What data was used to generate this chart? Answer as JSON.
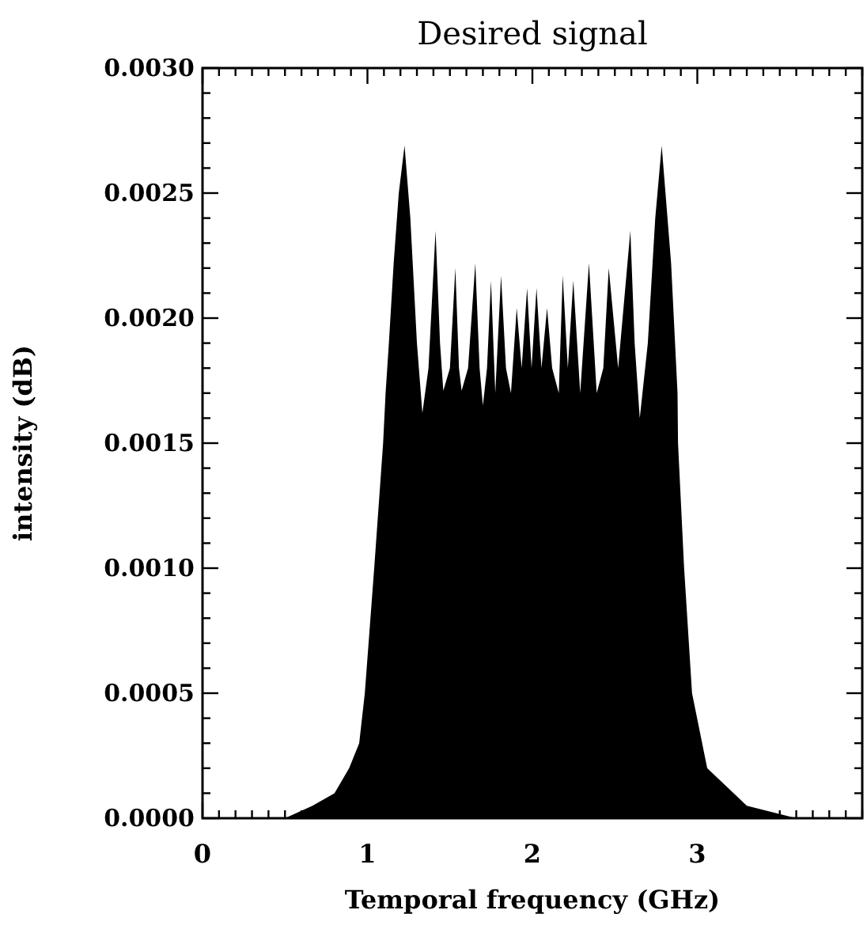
{
  "chart_data": {
    "type": "area",
    "title": "Desired signal",
    "xlabel": "Temporal frequency (GHz)",
    "ylabel": "intensity (dB)",
    "x": [
      0,
      0.3,
      0.5,
      0.667,
      0.8,
      0.889,
      0.95,
      0.984,
      1.041,
      1.095,
      1.11,
      1.13,
      1.159,
      1.19,
      1.225,
      1.26,
      1.3,
      1.333,
      1.37,
      1.413,
      1.44,
      1.46,
      1.5,
      1.533,
      1.555,
      1.571,
      1.61,
      1.654,
      1.68,
      1.7,
      1.725,
      1.749,
      1.775,
      1.81,
      1.84,
      1.87,
      1.905,
      1.935,
      1.968,
      1.995,
      2.025,
      2.055,
      2.089,
      2.12,
      2.16,
      2.184,
      2.215,
      2.248,
      2.29,
      2.343,
      2.39,
      2.43,
      2.463,
      2.52,
      2.594,
      2.62,
      2.651,
      2.7,
      2.745,
      2.784,
      2.841,
      2.88,
      2.883,
      2.92,
      2.968,
      3.06,
      3.3,
      3.6,
      4
    ],
    "values": [
      0,
      0,
      0,
      5e-05,
      0.0001,
      0.0002,
      0.0003,
      0.0005,
      0.001,
      0.0015,
      0.0017,
      0.0019,
      0.00222,
      0.0025,
      0.00269,
      0.0024,
      0.0019,
      0.00162,
      0.0018,
      0.00235,
      0.0019,
      0.00171,
      0.0018,
      0.0022,
      0.0018,
      0.00171,
      0.0018,
      0.00222,
      0.0018,
      0.00165,
      0.0018,
      0.00215,
      0.0017,
      0.00217,
      0.0018,
      0.0017,
      0.00204,
      0.0018,
      0.00212,
      0.0018,
      0.00212,
      0.0018,
      0.00204,
      0.0018,
      0.0017,
      0.00217,
      0.0018,
      0.00215,
      0.0017,
      0.00222,
      0.0017,
      0.0018,
      0.0022,
      0.0018,
      0.00235,
      0.0019,
      0.0016,
      0.0019,
      0.0024,
      0.00269,
      0.00222,
      0.0017,
      0.0015,
      0.001,
      0.0005,
      0.0002,
      5e-05,
      0,
      0
    ],
    "color": "#000000",
    "xlim": [
      0,
      4
    ],
    "ylim": [
      0,
      0.003
    ],
    "xticks": [
      0,
      1,
      2,
      3,
      {
        "value": 4,
        "label": null
      },
      {
        "value": 0.1,
        "label": null
      },
      {
        "value": 0.2,
        "label": null
      },
      {
        "value": 0.3,
        "label": null
      },
      {
        "value": 0.4,
        "label": null
      },
      {
        "value": 0.5,
        "label": null
      },
      {
        "value": 0.6,
        "label": null
      },
      {
        "value": 0.7,
        "label": null
      },
      {
        "value": 0.8,
        "label": null
      },
      {
        "value": 0.9,
        "label": null
      },
      {
        "value": 1.1,
        "label": null
      },
      {
        "value": 1.2,
        "label": null
      },
      {
        "value": 1.3,
        "label": null
      },
      {
        "value": 1.4,
        "label": null
      },
      {
        "value": 1.5,
        "label": null
      },
      {
        "value": 1.6,
        "label": null
      },
      {
        "value": 1.7,
        "label": null
      },
      {
        "value": 1.8,
        "label": null
      },
      {
        "value": 1.9,
        "label": null
      },
      {
        "value": 2.1,
        "label": null
      },
      {
        "value": 2.2,
        "label": null
      },
      {
        "value": 2.3,
        "label": null
      },
      {
        "value": 2.4,
        "label": null
      },
      {
        "value": 2.5,
        "label": null
      },
      {
        "value": 2.6,
        "label": null
      },
      {
        "value": 2.7,
        "label": null
      },
      {
        "value": 2.8,
        "label": null
      },
      {
        "value": 2.9,
        "label": null
      },
      {
        "value": 3.1,
        "label": null
      },
      {
        "value": 3.2,
        "label": null
      },
      {
        "value": 3.3,
        "label": null
      },
      {
        "value": 3.4,
        "label": null
      },
      {
        "value": 3.5,
        "label": null
      },
      {
        "value": 3.6,
        "label": null
      },
      {
        "value": 3.7,
        "label": null
      },
      {
        "value": 3.8,
        "label": null
      },
      {
        "value": 3.9,
        "label": null
      }
    ],
    "yticks": [
      {
        "value": 0,
        "label": "0.0000"
      },
      {
        "value": 0.0005,
        "label": "0.0005"
      },
      {
        "value": 0.001,
        "label": "0.0010"
      },
      {
        "value": 0.0015,
        "label": "0.0015"
      },
      {
        "value": 0.002,
        "label": "0.0020"
      },
      {
        "value": 0.0025,
        "label": "0.0025"
      },
      {
        "value": 0.003,
        "label": "0.0030"
      },
      {
        "value": 0.0001,
        "label": null
      },
      {
        "value": 0.0002,
        "label": null
      },
      {
        "value": 0.0003,
        "label": null
      },
      {
        "value": 0.0004,
        "label": null
      },
      {
        "value": 0.0006,
        "label": null
      },
      {
        "value": 0.0007,
        "label": null
      },
      {
        "value": 0.0008,
        "label": null
      },
      {
        "value": 0.0009,
        "label": null
      },
      {
        "value": 0.0011,
        "label": null
      },
      {
        "value": 0.0012,
        "label": null
      },
      {
        "value": 0.0013,
        "label": null
      },
      {
        "value": 0.0014,
        "label": null
      },
      {
        "value": 0.0016,
        "label": null
      },
      {
        "value": 0.0017,
        "label": null
      },
      {
        "value": 0.0018,
        "label": null
      },
      {
        "value": 0.0019,
        "label": null
      },
      {
        "value": 0.0021,
        "label": null
      },
      {
        "value": 0.0022,
        "label": null
      },
      {
        "value": 0.0023,
        "label": null
      },
      {
        "value": 0.0024,
        "label": null
      },
      {
        "value": 0.0026,
        "label": null
      },
      {
        "value": 0.0027,
        "label": null
      },
      {
        "value": 0.0028,
        "label": null
      },
      {
        "value": 0.0029,
        "label": null
      }
    ],
    "grid": false
  }
}
